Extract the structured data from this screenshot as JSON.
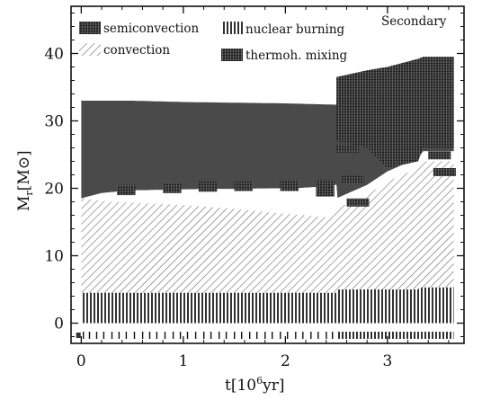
{
  "chart_data": {
    "type": "area",
    "title": "Secondary",
    "xlabel_base": "t[10",
    "xlabel_exp": "6",
    "xlabel_unit": "yr]",
    "ylabel_base": "M",
    "ylabel_sub": "r",
    "ylabel_unit": "[M⊙]",
    "xlim": [
      -0.1,
      3.75
    ],
    "ylim": [
      -3,
      47
    ],
    "x_ticks": [
      0,
      1,
      2,
      3
    ],
    "x_tick_labels": [
      "0",
      "1",
      "2",
      "3"
    ],
    "y_ticks": [
      0,
      10,
      20,
      30,
      40
    ],
    "y_tick_labels": [
      "0",
      "10",
      "20",
      "30",
      "40"
    ],
    "legend": [
      {
        "label": "semiconvection",
        "pattern": "dense"
      },
      {
        "label": "nuclear burning",
        "pattern": "vlines"
      },
      {
        "label": "convection",
        "pattern": "diag"
      },
      {
        "label": "thermoh. mixing",
        "pattern": "dense"
      }
    ],
    "legend_position": "top-left",
    "surface": {
      "x": [
        0,
        0.5,
        1.0,
        1.5,
        2.0,
        2.5,
        2.51,
        2.8,
        3.0,
        3.3,
        3.35,
        3.65
      ],
      "y": [
        33,
        33,
        32.8,
        32.7,
        32.6,
        32.4,
        36.5,
        37.5,
        38,
        39.2,
        39.5,
        39.5
      ]
    },
    "envelope_bottom": {
      "x": [
        0,
        0.2,
        0.5,
        0.9,
        1.2,
        1.5,
        1.9,
        2.1,
        2.3,
        2.45,
        2.5
      ],
      "y": [
        18.5,
        19.3,
        19.7,
        19.8,
        19.9,
        19.9,
        20.0,
        20.0,
        20.2,
        20.5,
        20.5
      ]
    },
    "convective_core": {
      "x": [
        0,
        0.3,
        0.6,
        1.0,
        1.3,
        1.6,
        1.8,
        2.0,
        2.2,
        2.4,
        2.45,
        2.5,
        2.8,
        3.0,
        3.3,
        3.35,
        3.65
      ],
      "y": [
        18.5,
        18.0,
        17.8,
        17.5,
        17.2,
        16.8,
        16.5,
        16.2,
        16.0,
        15.7,
        15.6,
        17,
        19,
        21,
        23,
        24,
        24
      ]
    },
    "nuclear_burning": {
      "x": [
        0,
        2.5,
        2.51,
        3.3,
        3.31,
        3.65
      ],
      "y": [
        4.5,
        4.5,
        5.0,
        5.0,
        5.3,
        5.3
      ]
    },
    "thermohaline_region": {
      "x": [
        2.5,
        2.8,
        3.0,
        3.3,
        3.35,
        3.65
      ],
      "y_top": [
        36.5,
        37.5,
        38,
        39.2,
        39.5,
        39.5
      ],
      "y_bottom": [
        27,
        26,
        23,
        24,
        26,
        26
      ]
    },
    "timesteps_sparse": [
      0.02,
      0.08,
      0.15,
      0.22,
      0.3,
      0.37,
      0.44,
      0.52,
      0.6,
      0.67,
      0.74,
      0.82,
      0.9,
      0.97,
      1.04,
      1.12,
      1.2,
      1.27,
      1.35,
      1.42,
      1.5,
      1.57,
      1.65,
      1.72,
      1.8,
      1.87,
      1.95,
      2.02,
      2.1,
      2.17,
      2.25,
      2.32,
      2.4,
      2.46
    ],
    "timesteps_dense_range": [
      2.5,
      3.65
    ],
    "colors": {
      "envelope": "#4a4a4a",
      "hatch": "#555555",
      "dense": "#222222",
      "axis": "#111111"
    }
  }
}
